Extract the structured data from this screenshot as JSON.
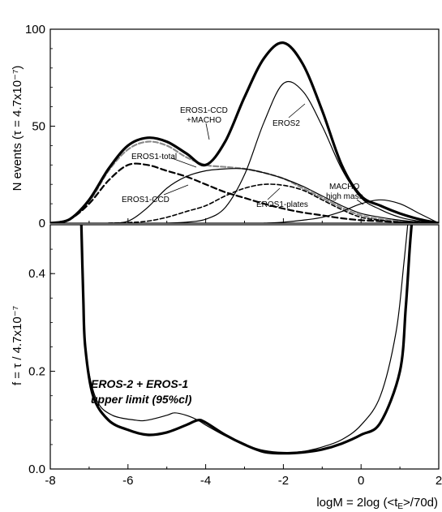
{
  "chart_data": [
    {
      "type": "line",
      "ylabel": "N events (τ = 4.7x10⁻⁷)",
      "xlim": [
        -8,
        2
      ],
      "ylim": [
        0,
        100
      ],
      "yticks": [
        "0",
        "50",
        "100"
      ],
      "series": [
        {
          "name": "EROS1-CCD + MACHO",
          "style": "thick",
          "x": [
            -8,
            -7.5,
            -7,
            -6.5,
            -6,
            -5.5,
            -5,
            -4.5,
            -4,
            -3.5,
            -3,
            -2.5,
            -2,
            -1.5,
            -1,
            -0.5,
            0,
            0.5,
            1,
            1.5,
            2
          ],
          "y": [
            0,
            2,
            12,
            28,
            40,
            44,
            42,
            36,
            30,
            42,
            65,
            85,
            93,
            82,
            58,
            30,
            14,
            9,
            5,
            2,
            0
          ]
        },
        {
          "name": "EROS2",
          "style": "thin",
          "x": [
            -5,
            -4.5,
            -4,
            -3.5,
            -3,
            -2.5,
            -2,
            -1.5,
            -1,
            -0.5,
            0,
            0.5,
            1,
            1.5,
            2
          ],
          "y": [
            0,
            0.5,
            2,
            8,
            25,
            52,
            72,
            68,
            50,
            28,
            13,
            7,
            3,
            1,
            0
          ]
        },
        {
          "name": "EROS1-total",
          "style": "gray",
          "x": [
            -8,
            -7.5,
            -7,
            -6.5,
            -6,
            -5.5,
            -5,
            -4.5,
            -4,
            -3.5,
            -3,
            -2.5,
            -2,
            -1.5,
            -1,
            -0.5,
            0,
            0.5,
            1,
            1.5,
            2
          ],
          "y": [
            0,
            2,
            11,
            27,
            38,
            42,
            40,
            34,
            30,
            29,
            28,
            26,
            23,
            18,
            13,
            8,
            4,
            2,
            1,
            0.5,
            0
          ]
        },
        {
          "name": "EROS1-CCD",
          "style": "dashed-thick",
          "x": [
            -8,
            -7.5,
            -7,
            -6.5,
            -6,
            -5.5,
            -5,
            -4.5,
            -4,
            -3.5,
            -3,
            -2.5,
            -2,
            -1.5,
            -1,
            -0.5,
            0,
            0.5,
            1,
            1.5,
            2
          ],
          "y": [
            0,
            2,
            10,
            22,
            30,
            30,
            27,
            24,
            20,
            16,
            13,
            10,
            7.5,
            5.5,
            4,
            2.5,
            1.5,
            1,
            0.5,
            0.2,
            0
          ]
        },
        {
          "name": "EROS1-plates",
          "style": "dashed",
          "x": [
            -6.5,
            -6,
            -5.5,
            -5,
            -4.5,
            -4,
            -3.5,
            -3,
            -2.5,
            -2,
            -1.5,
            -1,
            -0.5,
            0,
            0.5,
            1,
            1.5,
            2
          ],
          "y": [
            0,
            0.3,
            1,
            3,
            6,
            9,
            14,
            18,
            20,
            19.5,
            17,
            12,
            7,
            3,
            1.5,
            0.5,
            0.2,
            0
          ]
        },
        {
          "name": "",
          "style": "thin",
          "x": [
            -6.5,
            -6,
            -5.5,
            -5,
            -4.5,
            -4,
            -3.5,
            -3,
            -2.5,
            -2,
            -1.5,
            -1,
            -0.5,
            0,
            0.5,
            1,
            1.5,
            2
          ],
          "y": [
            0,
            1,
            8,
            18,
            24,
            27,
            28,
            28,
            26,
            23,
            19,
            14,
            9,
            5,
            3,
            1.5,
            0.5,
            0
          ]
        },
        {
          "name": "MACHO high mass",
          "style": "thin",
          "x": [
            -2.5,
            -2,
            -1.5,
            -1,
            -0.5,
            0,
            0.5,
            1,
            1.5,
            2
          ],
          "y": [
            0,
            0.5,
            1.5,
            3,
            6,
            10,
            12,
            10,
            5,
            0
          ]
        }
      ],
      "annotations": [
        "EROS1-CCD",
        "+MACHO",
        "EROS2",
        "EROS1-total",
        "EROS1-CCD",
        "EROS1-plates",
        "MACHO",
        "high mass"
      ]
    },
    {
      "type": "line",
      "xlabel_parts": [
        "logM = 2log (<t",
        "E",
        ">/70d)"
      ],
      "ylabel": "f = τ / 4.7x10⁻⁷",
      "xlim": [
        -8,
        2
      ],
      "ylim": [
        0,
        0.5
      ],
      "xticks": [
        "-8",
        "-6",
        "-4",
        "-2",
        "0",
        "2"
      ],
      "yticks": [
        "0.0",
        "0.2",
        "0.4"
      ],
      "series": [
        {
          "name": "EROS-2 + EROS-1 upper limit (95%cl)",
          "style": "thick",
          "x": [
            -7.2,
            -7.15,
            -7.1,
            -6.9,
            -6.5,
            -6,
            -5.5,
            -5,
            -4.5,
            -4.2,
            -4,
            -3.5,
            -3,
            -2.5,
            -2,
            -1.5,
            -1,
            -0.5,
            0,
            0.5,
            1,
            1.15,
            1.25,
            1.3
          ],
          "y": [
            0.5,
            0.35,
            0.25,
            0.15,
            0.1,
            0.08,
            0.07,
            0.075,
            0.09,
            0.1,
            0.095,
            0.07,
            0.05,
            0.035,
            0.032,
            0.034,
            0.04,
            0.052,
            0.07,
            0.095,
            0.2,
            0.33,
            0.45,
            0.5
          ]
        },
        {
          "name": "",
          "style": "thin",
          "x": [
            -7.2,
            -7.15,
            -7.05,
            -6.8,
            -6.4,
            -5.8,
            -5.5,
            -5,
            -4.8,
            -4.5,
            -4.2,
            -4,
            -3.5,
            -3,
            -2.5,
            -2,
            -1.5,
            -1,
            -0.5,
            0,
            0.5,
            0.9,
            1.1,
            1.2
          ],
          "y": [
            0.5,
            0.33,
            0.22,
            0.14,
            0.11,
            0.1,
            0.1,
            0.11,
            0.115,
            0.11,
            0.1,
            0.09,
            0.068,
            0.05,
            0.038,
            0.034,
            0.036,
            0.045,
            0.06,
            0.09,
            0.15,
            0.28,
            0.42,
            0.5
          ]
        }
      ],
      "annotations": [
        "EROS-2 + EROS-1",
        "upper limit (95%cl)"
      ]
    }
  ]
}
